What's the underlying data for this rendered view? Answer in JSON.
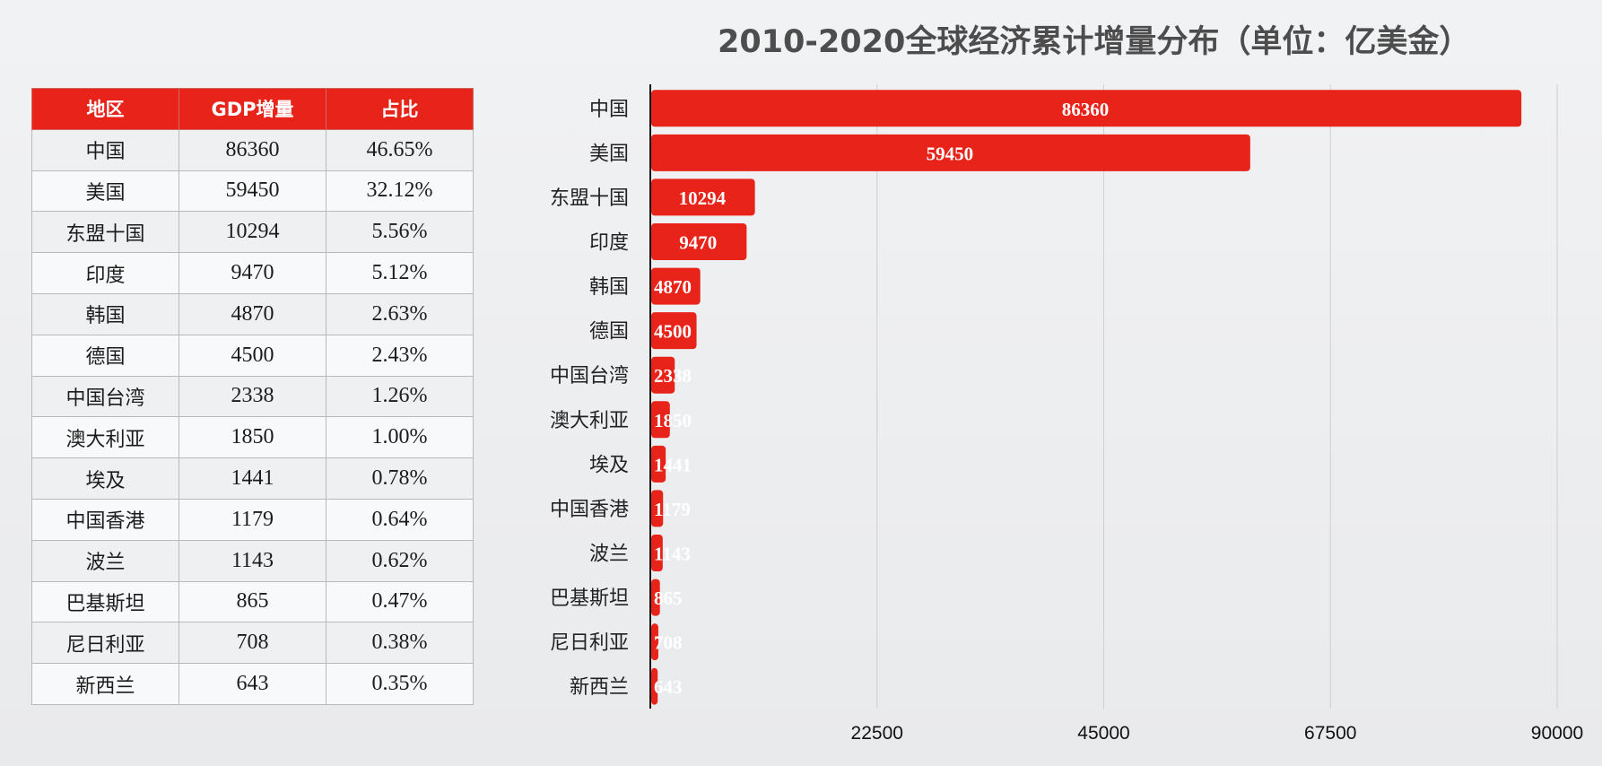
{
  "table": {
    "headers": [
      "地区",
      "GDP增量",
      "占比"
    ],
    "rows": [
      [
        "中国",
        "86360",
        "46.65%"
      ],
      [
        "美国",
        "59450",
        "32.12%"
      ],
      [
        "东盟十国",
        "10294",
        "5.56%"
      ],
      [
        "印度",
        "9470",
        "5.12%"
      ],
      [
        "韩国",
        "4870",
        "2.63%"
      ],
      [
        "德国",
        "4500",
        "2.43%"
      ],
      [
        "中国台湾",
        "2338",
        "1.26%"
      ],
      [
        "澳大利亚",
        "1850",
        "1.00%"
      ],
      [
        "埃及",
        "1441",
        "0.78%"
      ],
      [
        "中国香港",
        "1179",
        "0.64%"
      ],
      [
        "波兰",
        "1143",
        "0.62%"
      ],
      [
        "巴基斯坦",
        "865",
        "0.47%"
      ],
      [
        "尼日利亚",
        "708",
        "0.38%"
      ],
      [
        "新西兰",
        "643",
        "0.35%"
      ]
    ]
  },
  "chart_data": {
    "type": "bar",
    "orientation": "horizontal",
    "title": "2010-2020全球经济累计增量分布（单位：亿美金）",
    "categories": [
      "中国",
      "美国",
      "东盟十国",
      "印度",
      "韩国",
      "德国",
      "中国台湾",
      "澳大利亚",
      "埃及",
      "中国香港",
      "波兰",
      "巴基斯坦",
      "尼日利亚",
      "新西兰"
    ],
    "values": [
      86360,
      59450,
      10294,
      9470,
      4870,
      4500,
      2338,
      1850,
      1441,
      1179,
      1143,
      865,
      708,
      643
    ],
    "xlim": [
      0,
      90000
    ],
    "xticks": [
      22500,
      45000,
      67500,
      90000
    ],
    "xlabel": "",
    "ylabel": "",
    "grid": "vertical",
    "bar_color": "#e8231a",
    "data_labels": true
  }
}
